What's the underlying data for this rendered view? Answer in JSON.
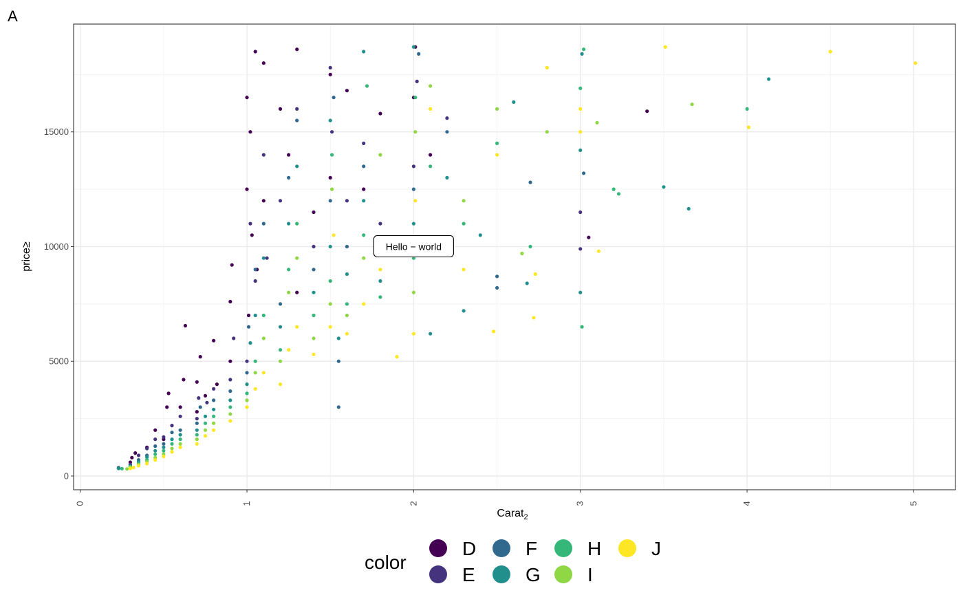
{
  "chart_data": {
    "type": "scatter",
    "tag": "A",
    "xlabel_main": "Carat",
    "xlabel_sub": "2",
    "ylabel": "price≥",
    "x_ticks": [
      "0",
      "1",
      "2",
      "3",
      "4",
      "5"
    ],
    "y_ticks": [
      "0",
      "5000",
      "10000",
      "15000"
    ],
    "xlim": [
      -0.04,
      5.25
    ],
    "ylim": [
      -600,
      19700
    ],
    "grid": true,
    "legend_position": "bottom",
    "legend_title": "color",
    "annotation": {
      "text": "Hello − world",
      "x": 2.0,
      "y": 10000
    },
    "series": [
      {
        "name": "D",
        "color": "#440154",
        "points": [
          [
            0.23,
            360
          ],
          [
            0.3,
            600
          ],
          [
            0.31,
            800
          ],
          [
            0.33,
            1000
          ],
          [
            0.4,
            1250
          ],
          [
            0.45,
            2000
          ],
          [
            0.5,
            1600
          ],
          [
            0.52,
            3000
          ],
          [
            0.53,
            3600
          ],
          [
            0.6,
            3000
          ],
          [
            0.62,
            4200
          ],
          [
            0.63,
            6550
          ],
          [
            0.7,
            2800
          ],
          [
            0.7,
            4100
          ],
          [
            0.72,
            5200
          ],
          [
            0.75,
            3500
          ],
          [
            0.8,
            5900
          ],
          [
            0.82,
            4000
          ],
          [
            0.9,
            7600
          ],
          [
            0.91,
            9200
          ],
          [
            0.9,
            5000
          ],
          [
            1.0,
            16500
          ],
          [
            1.0,
            12500
          ],
          [
            1.01,
            7000
          ],
          [
            1.02,
            15000
          ],
          [
            1.03,
            10500
          ],
          [
            1.05,
            18500
          ],
          [
            1.06,
            9000
          ],
          [
            1.1,
            18000
          ],
          [
            1.1,
            12000
          ],
          [
            1.2,
            16000
          ],
          [
            1.25,
            14000
          ],
          [
            1.3,
            8000
          ],
          [
            1.3,
            18600
          ],
          [
            1.4,
            11500
          ],
          [
            1.5,
            17500
          ],
          [
            1.5,
            13000
          ],
          [
            1.6,
            16800
          ],
          [
            1.7,
            12500
          ],
          [
            1.8,
            15800
          ],
          [
            2.0,
            16500
          ],
          [
            2.1,
            14000
          ],
          [
            2.01,
            18700
          ],
          [
            3.4,
            15900
          ],
          [
            3.05,
            10400
          ]
        ]
      },
      {
        "name": "E",
        "color": "#46337e",
        "points": [
          [
            0.23,
            340
          ],
          [
            0.3,
            500
          ],
          [
            0.35,
            900
          ],
          [
            0.4,
            1200
          ],
          [
            0.45,
            1600
          ],
          [
            0.5,
            1700
          ],
          [
            0.55,
            2200
          ],
          [
            0.6,
            2600
          ],
          [
            0.7,
            2500
          ],
          [
            0.71,
            3400
          ],
          [
            0.76,
            3200
          ],
          [
            0.8,
            3800
          ],
          [
            0.9,
            4200
          ],
          [
            0.92,
            6000
          ],
          [
            1.0,
            5000
          ],
          [
            1.02,
            11000
          ],
          [
            1.05,
            8500
          ],
          [
            1.1,
            14000
          ],
          [
            1.12,
            9500
          ],
          [
            1.2,
            12000
          ],
          [
            1.3,
            16000
          ],
          [
            1.4,
            10000
          ],
          [
            1.51,
            15000
          ],
          [
            1.5,
            17800
          ],
          [
            1.6,
            12000
          ],
          [
            1.7,
            14500
          ],
          [
            1.8,
            11000
          ],
          [
            2.0,
            13500
          ],
          [
            2.02,
            17200
          ],
          [
            2.2,
            15600
          ],
          [
            3.0,
            11500
          ],
          [
            3.0,
            9900
          ]
        ]
      },
      {
        "name": "F",
        "color": "#31688e",
        "points": [
          [
            0.23,
            350
          ],
          [
            0.3,
            450
          ],
          [
            0.35,
            700
          ],
          [
            0.4,
            900
          ],
          [
            0.45,
            1300
          ],
          [
            0.5,
            1400
          ],
          [
            0.55,
            1900
          ],
          [
            0.6,
            2000
          ],
          [
            0.7,
            2300
          ],
          [
            0.72,
            3000
          ],
          [
            0.8,
            3300
          ],
          [
            0.9,
            3700
          ],
          [
            1.0,
            4500
          ],
          [
            1.01,
            6500
          ],
          [
            1.05,
            9000
          ],
          [
            1.1,
            11000
          ],
          [
            1.2,
            7500
          ],
          [
            1.25,
            13000
          ],
          [
            1.3,
            15500
          ],
          [
            1.4,
            9000
          ],
          [
            1.5,
            12000
          ],
          [
            1.52,
            16500
          ],
          [
            1.55,
            5000
          ],
          [
            1.55,
            3000
          ],
          [
            1.6,
            10000
          ],
          [
            1.7,
            13500
          ],
          [
            1.8,
            9800
          ],
          [
            2.0,
            12500
          ],
          [
            2.03,
            18400
          ],
          [
            2.2,
            15000
          ],
          [
            2.5,
            8700
          ],
          [
            2.5,
            8200
          ],
          [
            2.7,
            12800
          ],
          [
            3.02,
            13200
          ]
        ]
      },
      {
        "name": "G",
        "color": "#21908d",
        "points": [
          [
            0.23,
            330
          ],
          [
            0.3,
            420
          ],
          [
            0.35,
            620
          ],
          [
            0.4,
            820
          ],
          [
            0.45,
            1100
          ],
          [
            0.5,
            1250
          ],
          [
            0.55,
            1600
          ],
          [
            0.6,
            1800
          ],
          [
            0.7,
            2000
          ],
          [
            0.75,
            2600
          ],
          [
            0.8,
            2900
          ],
          [
            0.9,
            3300
          ],
          [
            1.0,
            4000
          ],
          [
            1.02,
            5800
          ],
          [
            1.05,
            7000
          ],
          [
            1.1,
            9500
          ],
          [
            1.2,
            6500
          ],
          [
            1.25,
            11000
          ],
          [
            1.3,
            13500
          ],
          [
            1.4,
            8000
          ],
          [
            1.5,
            10000
          ],
          [
            1.5,
            15500
          ],
          [
            1.55,
            6000
          ],
          [
            1.6,
            8800
          ],
          [
            1.7,
            12000
          ],
          [
            1.7,
            18500
          ],
          [
            1.8,
            8500
          ],
          [
            2.0,
            11000
          ],
          [
            2.0,
            18700
          ],
          [
            2.1,
            6200
          ],
          [
            2.2,
            13000
          ],
          [
            2.3,
            7200
          ],
          [
            2.4,
            10500
          ],
          [
            2.6,
            16300
          ],
          [
            2.68,
            8400
          ],
          [
            3.0,
            8000
          ],
          [
            3.0,
            14200
          ],
          [
            3.5,
            12600
          ],
          [
            3.65,
            11650
          ],
          [
            4.13,
            17300
          ],
          [
            3.01,
            18400
          ]
        ]
      },
      {
        "name": "H",
        "color": "#35b779",
        "points": [
          [
            0.25,
            320
          ],
          [
            0.3,
            400
          ],
          [
            0.35,
            550
          ],
          [
            0.4,
            700
          ],
          [
            0.45,
            950
          ],
          [
            0.5,
            1100
          ],
          [
            0.55,
            1400
          ],
          [
            0.6,
            1600
          ],
          [
            0.7,
            1800
          ],
          [
            0.75,
            2300
          ],
          [
            0.8,
            2600
          ],
          [
            0.9,
            3000
          ],
          [
            1.0,
            3600
          ],
          [
            1.05,
            5000
          ],
          [
            1.1,
            7000
          ],
          [
            1.2,
            5500
          ],
          [
            1.25,
            9000
          ],
          [
            1.3,
            11000
          ],
          [
            1.4,
            7000
          ],
          [
            1.5,
            8500
          ],
          [
            1.51,
            14000
          ],
          [
            1.6,
            7500
          ],
          [
            1.7,
            10500
          ],
          [
            1.72,
            17000
          ],
          [
            1.8,
            7800
          ],
          [
            2.0,
            9500
          ],
          [
            2.01,
            16500
          ],
          [
            2.1,
            13500
          ],
          [
            2.3,
            11000
          ],
          [
            2.5,
            14500
          ],
          [
            2.7,
            10000
          ],
          [
            3.0,
            16900
          ],
          [
            3.01,
            6500
          ],
          [
            3.2,
            12500
          ],
          [
            3.23,
            12300
          ],
          [
            4.0,
            16000
          ],
          [
            3.02,
            18600
          ]
        ]
      },
      {
        "name": "I",
        "color": "#8fd744",
        "points": [
          [
            0.28,
            310
          ],
          [
            0.3,
            380
          ],
          [
            0.35,
            500
          ],
          [
            0.4,
            620
          ],
          [
            0.45,
            800
          ],
          [
            0.5,
            950
          ],
          [
            0.55,
            1200
          ],
          [
            0.6,
            1400
          ],
          [
            0.7,
            1600
          ],
          [
            0.75,
            2000
          ],
          [
            0.8,
            2300
          ],
          [
            0.9,
            2700
          ],
          [
            1.0,
            3300
          ],
          [
            1.05,
            4500
          ],
          [
            1.1,
            6000
          ],
          [
            1.2,
            5000
          ],
          [
            1.25,
            8000
          ],
          [
            1.3,
            9500
          ],
          [
            1.4,
            6000
          ],
          [
            1.5,
            7500
          ],
          [
            1.51,
            12500
          ],
          [
            1.6,
            7000
          ],
          [
            1.7,
            9500
          ],
          [
            1.8,
            14000
          ],
          [
            2.0,
            8000
          ],
          [
            2.01,
            15000
          ],
          [
            2.1,
            17000
          ],
          [
            2.3,
            12000
          ],
          [
            2.5,
            16000
          ],
          [
            2.65,
            9700
          ],
          [
            2.8,
            15000
          ],
          [
            3.1,
            15400
          ],
          [
            3.67,
            16200
          ]
        ]
      },
      {
        "name": "J",
        "color": "#fde725",
        "points": [
          [
            0.3,
            330
          ],
          [
            0.32,
            370
          ],
          [
            0.35,
            450
          ],
          [
            0.4,
            540
          ],
          [
            0.45,
            700
          ],
          [
            0.5,
            850
          ],
          [
            0.55,
            1050
          ],
          [
            0.6,
            1250
          ],
          [
            0.7,
            1400
          ],
          [
            0.75,
            1750
          ],
          [
            0.8,
            2000
          ],
          [
            0.9,
            2400
          ],
          [
            1.0,
            3000
          ],
          [
            1.05,
            3800
          ],
          [
            1.1,
            4500
          ],
          [
            1.2,
            4000
          ],
          [
            1.25,
            5500
          ],
          [
            1.3,
            6500
          ],
          [
            1.4,
            5300
          ],
          [
            1.5,
            6500
          ],
          [
            1.52,
            10500
          ],
          [
            1.6,
            6200
          ],
          [
            1.7,
            7500
          ],
          [
            1.8,
            9000
          ],
          [
            1.9,
            5200
          ],
          [
            2.0,
            6200
          ],
          [
            2.01,
            12000
          ],
          [
            2.1,
            16000
          ],
          [
            2.3,
            9000
          ],
          [
            2.48,
            6300
          ],
          [
            2.5,
            14000
          ],
          [
            2.72,
            6900
          ],
          [
            2.73,
            8800
          ],
          [
            2.8,
            17800
          ],
          [
            3.0,
            15000
          ],
          [
            3.11,
            9800
          ],
          [
            3.51,
            18700
          ],
          [
            4.01,
            15200
          ],
          [
            4.5,
            18500
          ],
          [
            5.01,
            18000
          ],
          [
            3.0,
            16000
          ]
        ]
      }
    ]
  }
}
